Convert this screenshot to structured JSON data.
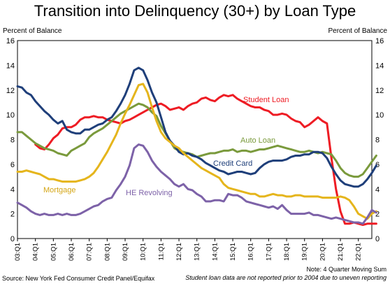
{
  "chart_data": {
    "type": "line",
    "title": "Transition into Delinquency (30+) by Loan Type",
    "ylabel_left": "Percent of Balance",
    "ylabel_right": "Percent of Balance",
    "ylim": [
      0,
      16
    ],
    "yticks": [
      0,
      2,
      4,
      6,
      8,
      10,
      12,
      14,
      16
    ],
    "grid": false,
    "x_tick_labels": [
      "03:Q1",
      "04:Q1",
      "05:Q1",
      "06:Q1",
      "07:Q1",
      "08:Q1",
      "09:Q1",
      "10:Q1",
      "11:Q1",
      "12:Q1",
      "13:Q1",
      "14:Q1",
      "15:Q1",
      "16:Q1",
      "17:Q1",
      "18:Q1",
      "19:Q1",
      "20:Q1",
      "21:Q1",
      "22:Q1"
    ],
    "x_range": [
      "03:Q1",
      "22:Q4"
    ],
    "source": "Source: New York Fed Consumer Credit Panel/Equifax",
    "note_line1": "Note: 4 Quarter Moving Sum",
    "note_line2": "Student loan data are not reported prior to 2004 due to uneven reporting",
    "series": [
      {
        "name": "Student Loan",
        "color": "#ee1c24",
        "start": "04:Q1",
        "values": [
          7.6,
          7.3,
          7.2,
          7.6,
          8.1,
          8.4,
          8.9,
          9.0,
          9.0,
          9.2,
          9.6,
          9.8,
          9.8,
          9.9,
          9.8,
          9.8,
          9.6,
          9.5,
          9.4,
          9.3,
          9.5,
          9.6,
          9.8,
          10.0,
          10.2,
          10.4,
          10.6,
          10.8,
          10.9,
          10.7,
          10.4,
          10.5,
          10.6,
          10.4,
          10.7,
          10.9,
          11.0,
          11.3,
          11.4,
          11.2,
          11.1,
          11.4,
          11.6,
          11.5,
          11.6,
          11.3,
          11.1,
          10.9,
          10.7,
          10.6,
          10.6,
          10.4,
          10.3,
          10.0,
          10.0,
          10.1,
          10.0,
          9.7,
          9.5,
          9.4,
          9.0,
          9.2,
          9.5,
          9.8,
          9.5,
          9.3,
          6.5,
          4.0,
          2.2,
          1.2,
          1.2,
          1.3,
          1.2,
          1.1,
          1.2,
          1.2,
          1.2
        ]
      },
      {
        "name": "Auto Loan",
        "color": "#7a9a3c",
        "start": "03:Q1",
        "values": [
          8.6,
          8.6,
          8.3,
          8.0,
          7.7,
          7.5,
          7.3,
          7.2,
          7.1,
          6.9,
          6.8,
          6.7,
          7.1,
          7.3,
          7.5,
          7.7,
          8.2,
          8.5,
          8.7,
          8.9,
          9.2,
          9.5,
          9.8,
          10.1,
          10.3,
          10.5,
          10.7,
          10.9,
          10.8,
          10.6,
          10.2,
          9.9,
          9.1,
          8.5,
          7.9,
          7.3,
          7.1,
          7.0,
          6.9,
          6.8,
          6.6,
          6.7,
          6.8,
          6.9,
          6.9,
          7.0,
          7.1,
          7.1,
          7.2,
          7.0,
          7.1,
          7.1,
          7.0,
          7.1,
          7.2,
          7.2,
          7.3,
          7.4,
          7.5,
          7.4,
          7.3,
          7.2,
          7.1,
          7.0,
          7.0,
          7.1,
          7.0,
          6.9,
          7.0,
          6.9,
          6.8,
          6.3,
          5.7,
          5.3,
          5.1,
          5.0,
          5.0,
          5.2,
          5.7,
          6.2,
          6.7
        ]
      },
      {
        "name": "Credit Card",
        "color": "#1f3f7a",
        "start": "03:Q1",
        "values": [
          12.3,
          12.2,
          11.8,
          11.6,
          11.1,
          10.7,
          10.3,
          10.0,
          9.6,
          9.3,
          9.5,
          8.8,
          8.6,
          8.5,
          8.5,
          8.8,
          8.8,
          9.0,
          9.2,
          9.3,
          9.6,
          9.8,
          10.3,
          10.9,
          11.6,
          12.5,
          13.6,
          13.8,
          13.6,
          12.8,
          11.8,
          11.0,
          9.8,
          8.6,
          7.9,
          7.5,
          7.0,
          6.8,
          6.9,
          6.7,
          6.6,
          6.4,
          6.1,
          5.9,
          5.7,
          5.5,
          5.4,
          5.2,
          5.3,
          5.4,
          5.4,
          5.3,
          5.2,
          5.3,
          5.7,
          6.0,
          6.2,
          6.3,
          6.3,
          6.3,
          6.4,
          6.6,
          6.7,
          6.7,
          6.8,
          6.8,
          7.0,
          7.0,
          6.9,
          6.5,
          5.8,
          5.2,
          4.7,
          4.4,
          4.3,
          4.2,
          4.2,
          4.4,
          4.8,
          5.3,
          5.9
        ]
      },
      {
        "name": "Mortgage",
        "color": "#e5b51c",
        "start": "03:Q1",
        "values": [
          5.4,
          5.4,
          5.5,
          5.4,
          5.3,
          5.2,
          5.0,
          4.8,
          4.8,
          4.7,
          4.6,
          4.6,
          4.6,
          4.6,
          4.7,
          4.8,
          5.0,
          5.3,
          5.8,
          6.4,
          7.0,
          7.7,
          8.4,
          9.3,
          10.1,
          10.8,
          11.6,
          12.4,
          12.5,
          11.8,
          10.6,
          9.5,
          8.6,
          8.1,
          7.8,
          7.5,
          7.3,
          6.9,
          6.6,
          6.3,
          6.0,
          5.7,
          5.5,
          5.3,
          5.1,
          4.9,
          4.4,
          4.1,
          4.0,
          3.9,
          3.8,
          3.7,
          3.6,
          3.6,
          3.4,
          3.4,
          3.5,
          3.6,
          3.5,
          3.5,
          3.4,
          3.4,
          3.5,
          3.5,
          3.4,
          3.4,
          3.4,
          3.4,
          3.3,
          3.3,
          3.3,
          3.3,
          3.4,
          3.3,
          3.1,
          2.6,
          2.0,
          1.8,
          1.6,
          2.0,
          2.2
        ]
      },
      {
        "name": "HE Revolving",
        "color": "#7d62a8",
        "start": "03:Q1",
        "values": [
          2.9,
          2.7,
          2.5,
          2.2,
          2.0,
          1.9,
          2.0,
          1.9,
          1.9,
          2.0,
          1.9,
          2.0,
          1.9,
          1.9,
          2.0,
          2.2,
          2.4,
          2.6,
          2.7,
          3.0,
          3.2,
          3.3,
          3.9,
          4.4,
          5.0,
          5.9,
          7.3,
          7.6,
          7.5,
          7.0,
          6.3,
          5.8,
          5.4,
          5.1,
          4.8,
          4.4,
          4.2,
          4.4,
          4.0,
          3.9,
          3.6,
          3.4,
          3.0,
          3.0,
          3.1,
          3.1,
          3.0,
          3.6,
          3.5,
          3.5,
          3.3,
          3.0,
          2.9,
          2.8,
          2.7,
          2.6,
          2.5,
          2.6,
          2.4,
          2.7,
          2.3,
          2.0,
          2.0,
          2.0,
          2.0,
          2.1,
          1.9,
          1.9,
          1.8,
          1.7,
          1.6,
          1.7,
          1.6,
          1.5,
          1.4,
          1.3,
          1.3,
          1.2,
          1.7,
          2.3,
          2.1
        ]
      }
    ]
  }
}
